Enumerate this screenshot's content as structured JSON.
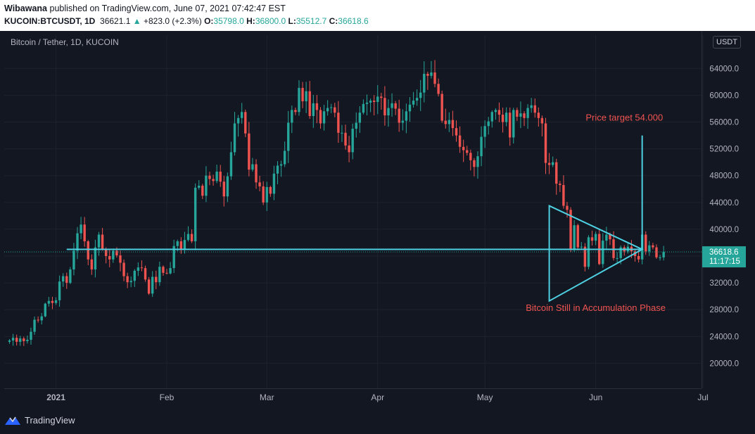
{
  "header": {
    "author": "Wibawana",
    "published_text": " published on TradingView.com, June 07, 2021 07:42:47 EST",
    "symbol": "KUCOIN:BTCUSDT, 1D",
    "last": "36621.1",
    "change": "+823.0 (+2.3%)",
    "o_label": "O:",
    "o_value": "35798.0",
    "h_label": "H:",
    "h_value": "36800.0",
    "l_label": "L:",
    "l_value": "35512.7",
    "c_label": "C:",
    "c_value": "36618.6"
  },
  "legend_title": "Bitcoin / Tether, 1D, KUCOIN",
  "currency_badge": "USDT",
  "footer": {
    "brand": "TradingView",
    "logo_icon": "tradingview-logo-icon"
  },
  "colors": {
    "up": "#26a69a",
    "down": "#ef5350",
    "annotation_line": "#4dd0e1",
    "annotation_text": "#ef5350",
    "background": "#131722"
  },
  "chart_data": {
    "type": "candlestick",
    "title": "Bitcoin / Tether, 1D, KUCOIN",
    "ylabel": "USDT",
    "ylim": [
      17000,
      67000
    ],
    "y_ticks": [
      "20000.0",
      "24000.0",
      "28000.0",
      "32000.0",
      "36000.0",
      "40000.0",
      "44000.0",
      "48000.0",
      "52000.0",
      "56000.0",
      "60000.0",
      "64000.0"
    ],
    "x_ticks": [
      "2021",
      "Feb",
      "Mar",
      "Apr",
      "May",
      "Jun",
      "Jul"
    ],
    "grid": true,
    "start_date": "2020-12-19",
    "closes": [
      23400,
      23800,
      23200,
      23700,
      23300,
      23500,
      24700,
      26500,
      26400,
      27000,
      28900,
      29300,
      29000,
      29400,
      32200,
      33000,
      32000,
      34000,
      36800,
      39400,
      40700,
      38200,
      35500,
      34000,
      37300,
      39200,
      37000,
      36000,
      35500,
      36800,
      36100,
      35000,
      33000,
      32100,
      32300,
      33800,
      34300,
      34200,
      32500,
      30400,
      32900,
      32100,
      34400,
      33500,
      33400,
      34200,
      37500,
      38200,
      36900,
      38400,
      39300,
      38200,
      46200,
      46500,
      45000,
      48000,
      47500,
      47200,
      48600,
      47100,
      44900,
      47900,
      51500,
      55800,
      56600,
      57500,
      54300,
      48900,
      49700,
      47000,
      46400,
      44000,
      46300,
      45300,
      48300,
      49500,
      49700,
      51700,
      55900,
      57800,
      57500,
      61100,
      59100,
      60600,
      56900,
      58800,
      57800,
      55800,
      57600,
      58100,
      58200,
      57400,
      54400,
      54400,
      52500,
      51500,
      55000,
      55900,
      57400,
      58700,
      58900,
      59200,
      59000,
      59800,
      59600,
      57000,
      58100,
      58800,
      58000,
      55900,
      56200,
      57600,
      58600,
      59200,
      59600,
      60400,
      63200,
      62900,
      63400,
      61700,
      60200,
      56200,
      55700,
      56300,
      55100,
      54000,
      52300,
      51800,
      51400,
      50300,
      49300,
      50900,
      53800,
      55400,
      56100,
      57500,
      57800,
      57100,
      56000,
      57400,
      53700,
      57800,
      56800,
      57300,
      56600,
      58100,
      58500,
      57400,
      56600,
      55800,
      49900,
      49600,
      50000,
      46800,
      46600,
      43500,
      42900,
      37000,
      40600,
      37300,
      37400,
      34400,
      38800,
      38300,
      39300,
      34800,
      38300,
      39200,
      38500,
      35700,
      35700,
      37300,
      36700,
      37400,
      36700,
      36000,
      35500,
      39200,
      36700,
      37600,
      37300,
      35800,
      35800,
      36621
    ],
    "current_price": 36618.6,
    "countdown": "11:17:15",
    "annotations": [
      {
        "type": "horizontal_segment",
        "y": 37000,
        "x_from": "2021-01-04",
        "x_to": "2021-06-14"
      },
      {
        "type": "triangle",
        "points": [
          [
            "2021-05-19",
            43500
          ],
          [
            "2021-06-14",
            37000
          ],
          [
            "2021-05-19",
            29300
          ]
        ]
      },
      {
        "type": "vertical_segment",
        "x": "2021-06-14",
        "y_from": 37000,
        "y_to": 54000
      },
      {
        "type": "text",
        "text": "Price target 54.000",
        "x": "2021-06-09",
        "y": 56200
      },
      {
        "type": "text",
        "text": "Bitcoin Still in Accumulation Phase",
        "x": "2021-06-01",
        "y": 27800
      }
    ]
  }
}
